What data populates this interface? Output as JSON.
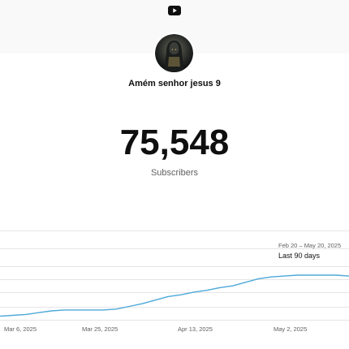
{
  "header": {
    "logo_icon": "youtube-logo-icon"
  },
  "channel": {
    "avatar_icon": "channel-avatar-hooded-figure",
    "name": "Amém senhor jesus 9"
  },
  "stats": {
    "subscriber_count": "75,548",
    "subscriber_label": "Subscribers"
  },
  "period": {
    "range": "Feb 20 – May 20, 2025",
    "label": "Last 90 days"
  },
  "colors": {
    "line": "#4ea8d9",
    "grid": "#e5e5e5",
    "axis_text": "#606060"
  },
  "chart_data": {
    "type": "line",
    "title": "",
    "xlabel": "",
    "ylabel": "",
    "x_tick_labels": [
      "Mar 6, 2025",
      "Mar 25, 2025",
      "Apr 13, 2025",
      "May 2, 2025"
    ],
    "grid": true,
    "series": [
      {
        "values": [
          4,
          5,
          6,
          8,
          10,
          11,
          11,
          11,
          11,
          12,
          15,
          18,
          22,
          26,
          28,
          31,
          33,
          36,
          38,
          42,
          46,
          48,
          49,
          50,
          50,
          50,
          50,
          49
        ]
      }
    ]
  }
}
